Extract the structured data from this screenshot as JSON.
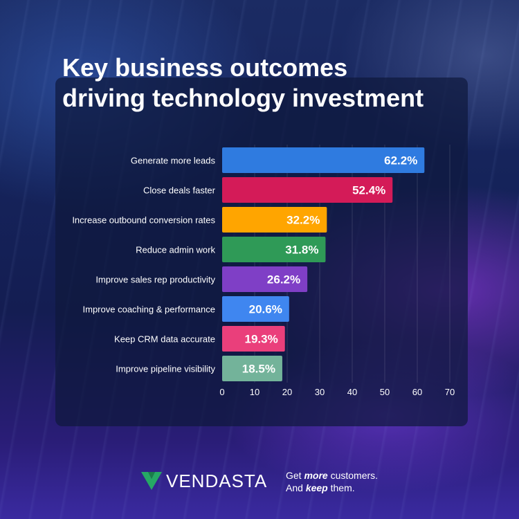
{
  "title_lines": [
    "Key business outcomes",
    "driving technology investment"
  ],
  "brand": "VENDASTA",
  "tagline": {
    "line1_pre": "Get ",
    "line1_em": "more",
    "line1_post": " customers.",
    "line2_pre": "And ",
    "line2_em": "keep",
    "line2_post": " them."
  },
  "colors": {
    "brand_green": "#26a865"
  },
  "chart_data": {
    "type": "bar",
    "orientation": "horizontal",
    "categories": [
      "Generate more leads",
      "Close deals faster",
      "Increase outbound conversion rates",
      "Reduce admin work",
      "Improve sales rep productivity",
      "Improve coaching & performance",
      "Keep CRM data accurate",
      "Improve pipeline visibility"
    ],
    "values": [
      62.2,
      52.4,
      32.2,
      31.8,
      26.2,
      20.6,
      19.3,
      18.5
    ],
    "data_labels": [
      "62.2%",
      "52.4%",
      "32.2%",
      "31.8%",
      "26.2%",
      "20.6%",
      "19.3%",
      "18.5%"
    ],
    "bar_colors": [
      "#2f7be0",
      "#d41b58",
      "#ffa500",
      "#2f9a57",
      "#7f3fc6",
      "#3f86f0",
      "#ea3f7b",
      "#73b39a"
    ],
    "xlim": [
      0,
      70
    ],
    "xticks": [
      0,
      10,
      20,
      30,
      40,
      50,
      60,
      70
    ],
    "grid": true,
    "title": "",
    "xlabel": "",
    "ylabel": ""
  }
}
